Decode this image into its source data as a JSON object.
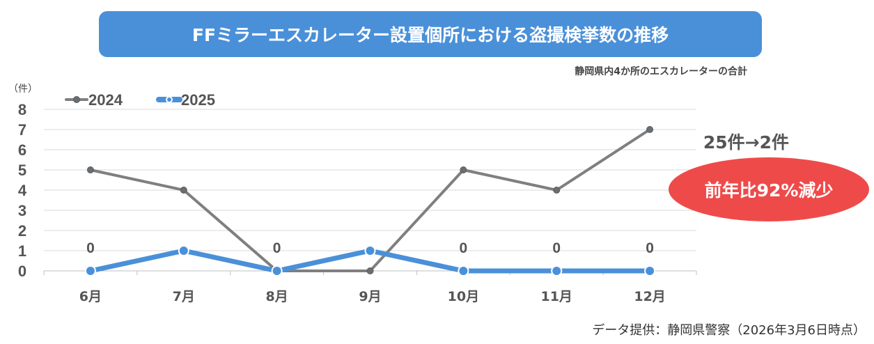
{
  "header": {
    "title": "FFミラーエスカレーター設置個所における盗撮検挙数の推移",
    "subtitle": "静岡県内4か所のエスカレーターの合計",
    "unit": "（件）"
  },
  "annotation": {
    "change": "25件→2件",
    "badge": "前年比92%減少",
    "badge_color": "#ef4a4a"
  },
  "source": "データ提供：静岡県警察（2026年3月6日時点）",
  "chart_data": {
    "type": "line",
    "title": "FFミラーエスカレーター設置個所における盗撮検挙数の推移",
    "xlabel": "",
    "ylabel": "（件）",
    "categories": [
      "6月",
      "7月",
      "8月",
      "9月",
      "10月",
      "11月",
      "12月"
    ],
    "ylim": [
      0,
      8
    ],
    "yticks": [
      "0",
      "1",
      "2",
      "3",
      "4",
      "5",
      "6",
      "7",
      "8"
    ],
    "grid": true,
    "legend": "top-left",
    "series": [
      {
        "name": "2024",
        "values": [
          5,
          4,
          0,
          0,
          5,
          4,
          7
        ],
        "color": "#7f7f7f"
      },
      {
        "name": "2025",
        "values": [
          0,
          1,
          0,
          1,
          0,
          0,
          0
        ],
        "color": "#4a90d9",
        "data_labels": [
          "0",
          "",
          "0",
          "",
          "0",
          "0",
          "0"
        ]
      }
    ]
  }
}
